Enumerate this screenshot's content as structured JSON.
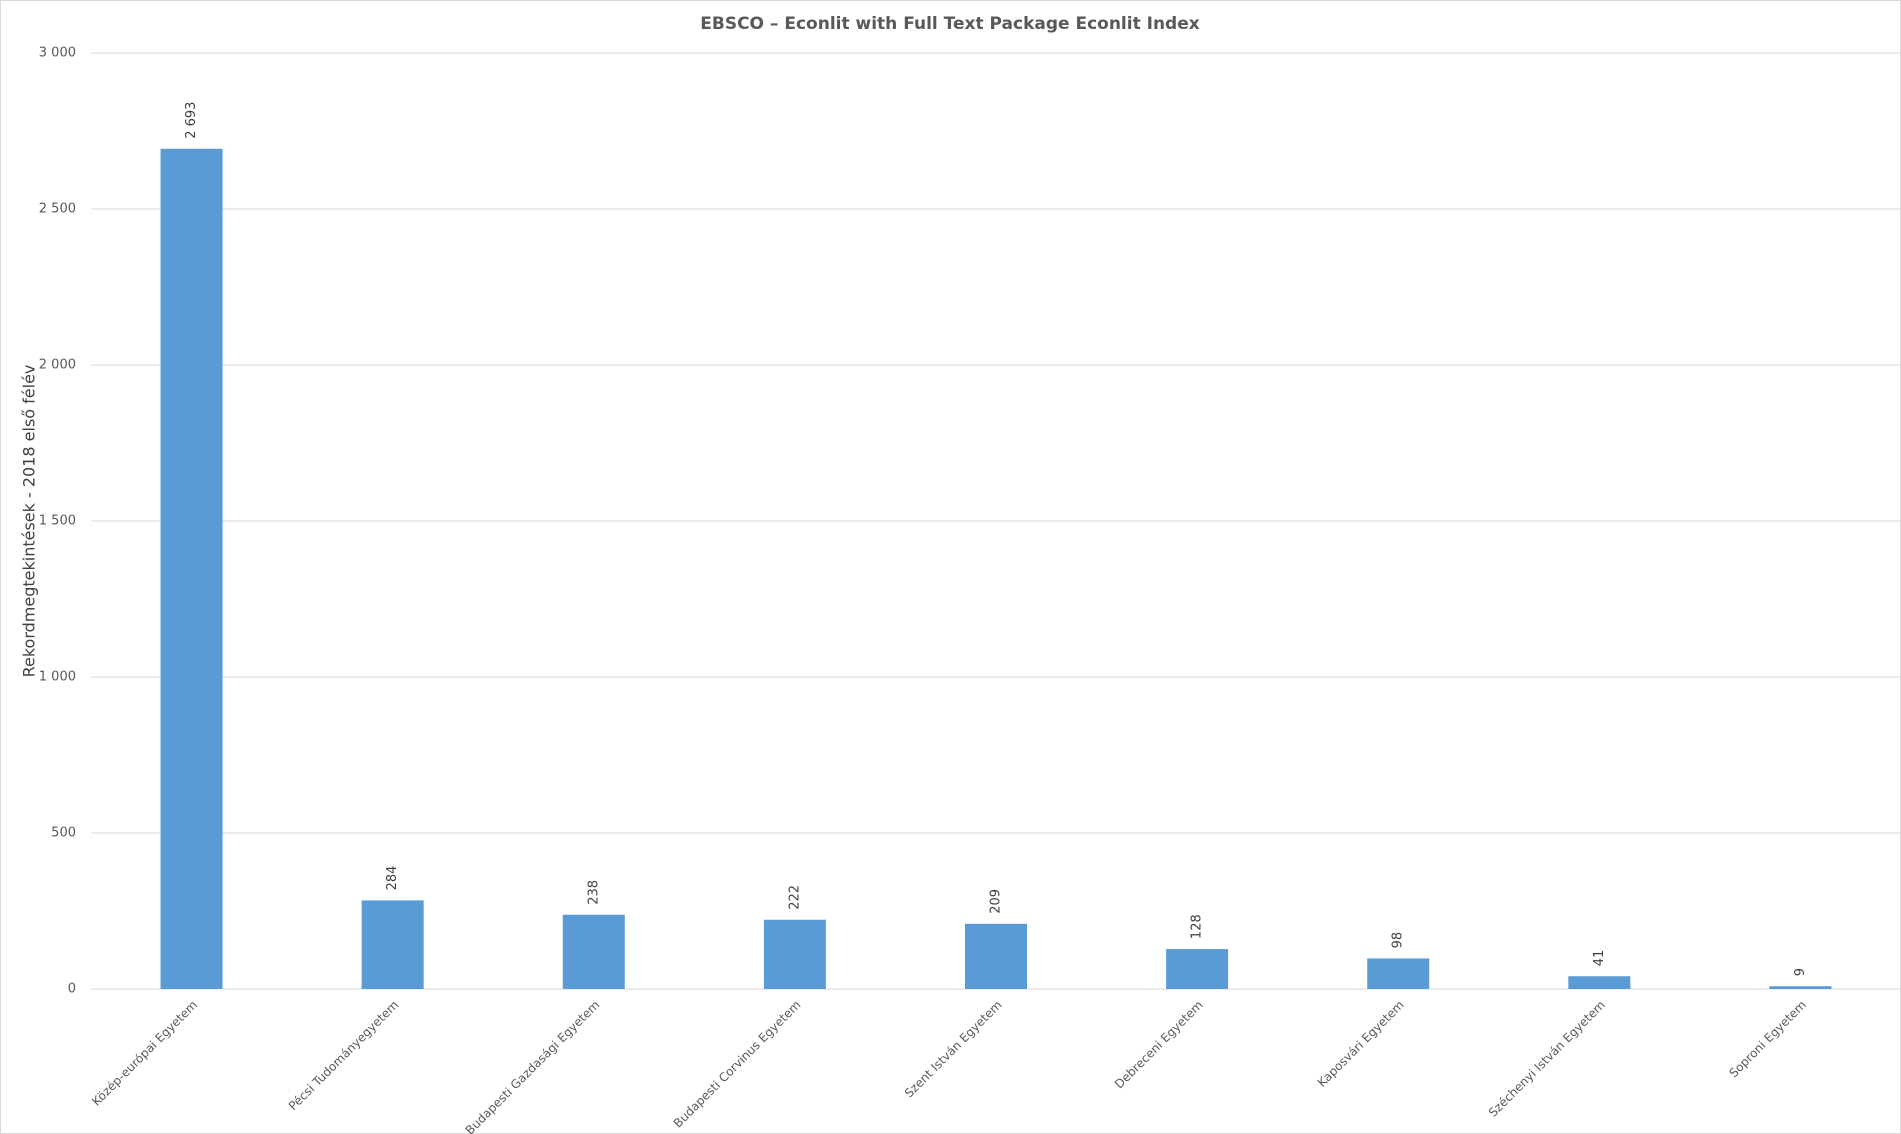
{
  "chart_data": {
    "type": "bar",
    "title": "EBSCO – Econlit with Full Text Package Econlit Index",
    "y_label": "Rekordmegtekintések - 2018 első félév",
    "categories": [
      "Közép-európai Egyetem",
      "Pécsi Tudományegyetem",
      "Budapesti Gazdasági Egyetem",
      "Budapesti Corvinus Egyetem",
      "Szent István Egyetem",
      "Debreceni Egyetem",
      "Kaposvári Egyetem",
      "Széchenyi István Egyetem",
      "Soproni Egyetem"
    ],
    "values": [
      2693,
      284,
      238,
      222,
      209,
      128,
      98,
      41,
      9
    ],
    "value_labels": [
      "2 693",
      "284",
      "238",
      "222",
      "209",
      "128",
      "98",
      "41",
      "9"
    ],
    "color": "#5b9bd5",
    "ylim": [
      0,
      3000
    ],
    "yticks": [
      0,
      500,
      {
        "value": 1000,
        "label": "1 000"
      },
      {
        "value": 1500,
        "label": "1 500"
      },
      {
        "value": 2000,
        "label": "2 000"
      },
      {
        "value": 2500,
        "label": "2 500"
      },
      {
        "value": 3000,
        "label": "3 000"
      }
    ],
    "grid": true
  }
}
